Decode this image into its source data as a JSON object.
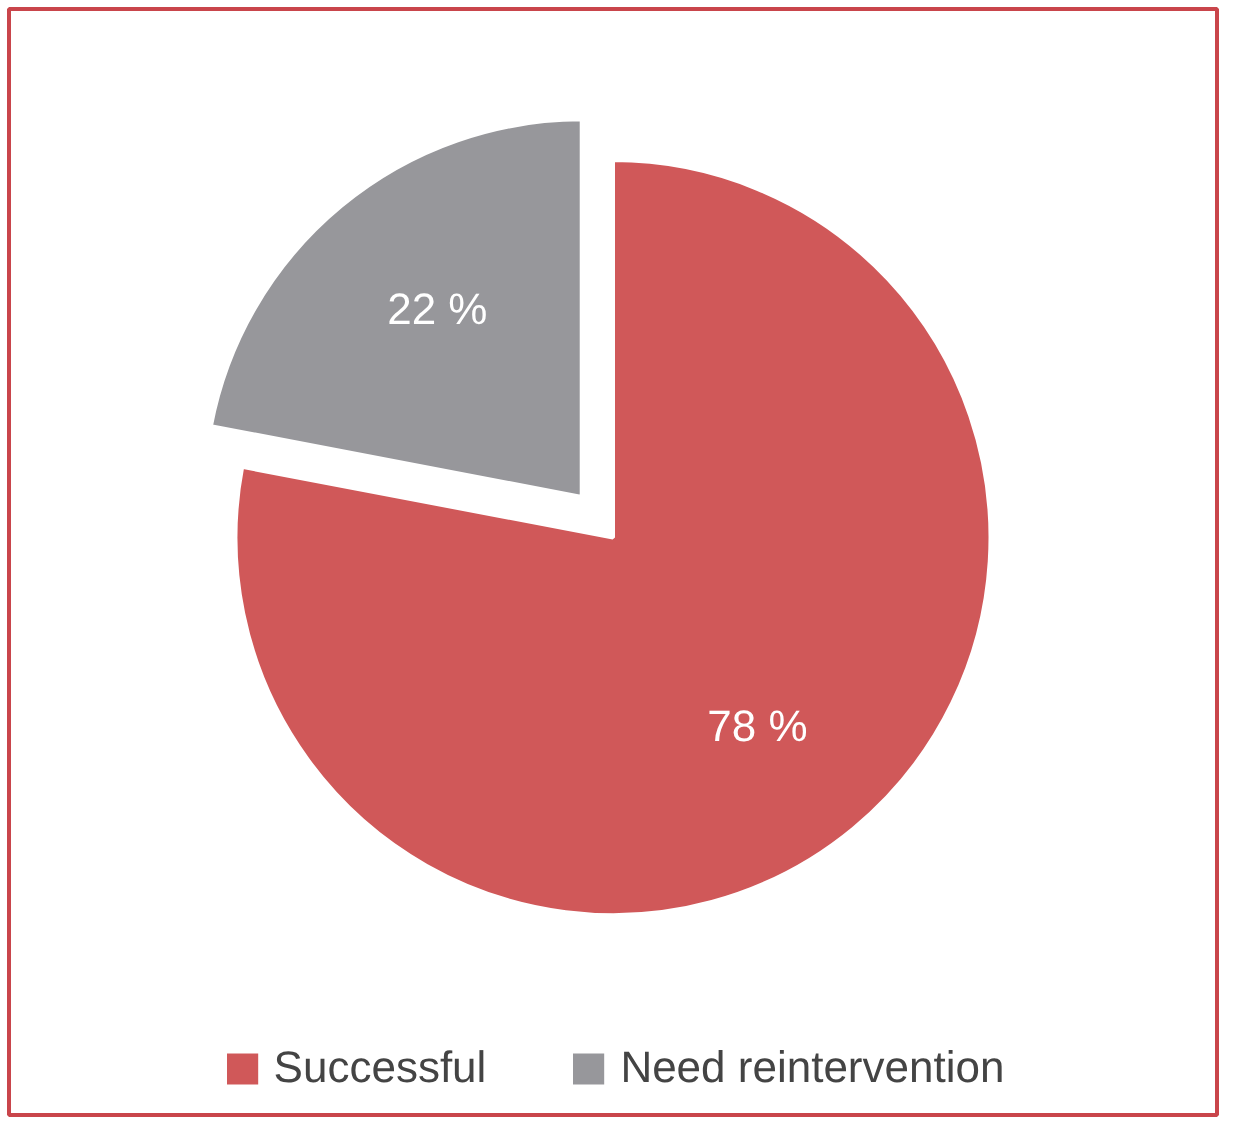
{
  "chart_data": {
    "type": "pie",
    "categories": [
      "Successful",
      "Need reintervention"
    ],
    "values": [
      78,
      22
    ],
    "colors": [
      "#d05859",
      "#97979b"
    ],
    "value_labels": [
      "78 %",
      "22 %"
    ],
    "legend": "bottom"
  }
}
